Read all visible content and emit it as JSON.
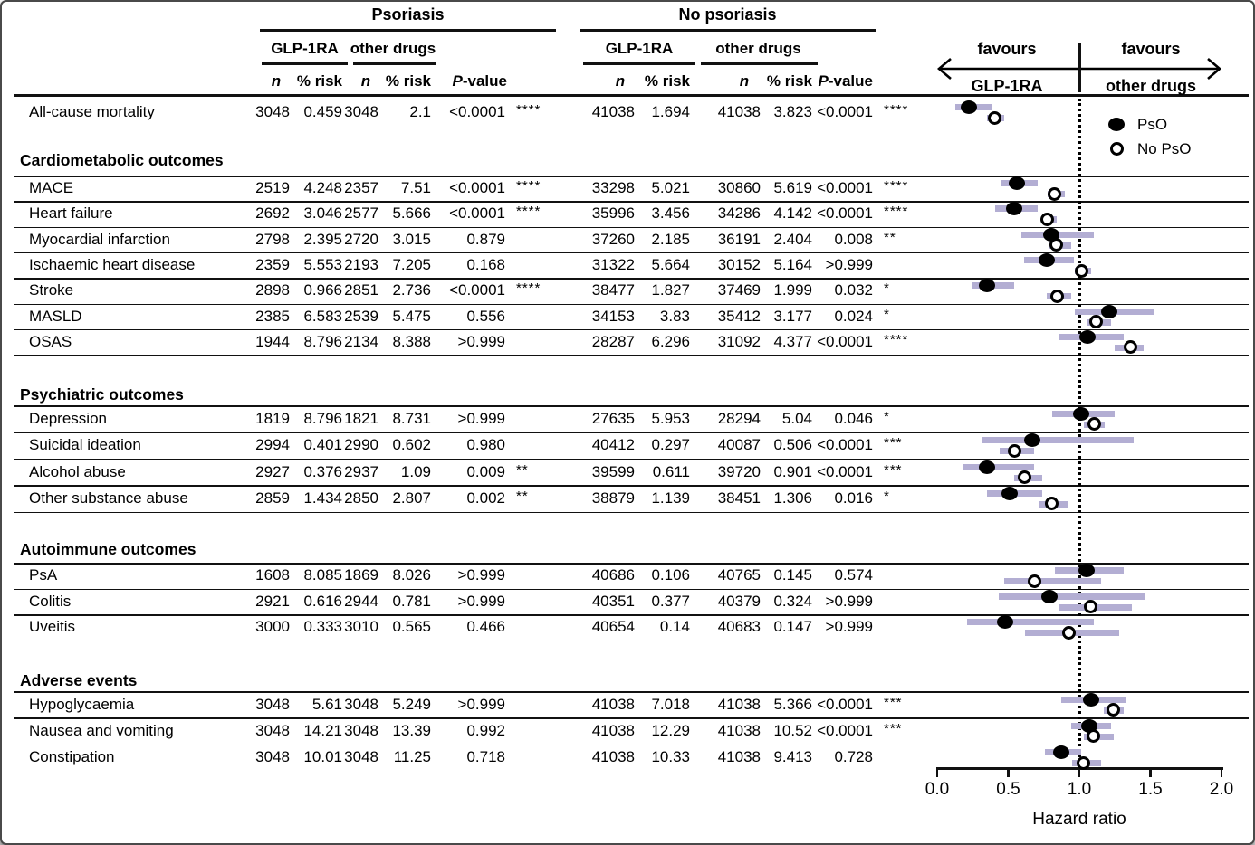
{
  "chart_data": {
    "type": "forest",
    "groups": {
      "g1": "Psoriasis",
      "g2": "No psoriasis"
    },
    "subgroups": {
      "s1": "GLP-1RA",
      "s2": "other drugs"
    },
    "columns": {
      "n": "n",
      "risk": "% risk",
      "p_italic": "P",
      "p_rest": "-value"
    },
    "favours": {
      "left_line1": "favours",
      "left_line2": "GLP-1RA",
      "right_line1": "favours",
      "right_line2": "other drugs"
    },
    "legend": {
      "filled_label": "PsO",
      "open_label": "No PsO"
    },
    "x_axis": {
      "label": "Hazard ratio",
      "min": 0,
      "max": 2,
      "tick_labels": [
        "0.0",
        "0.5",
        "1.0",
        "1.5",
        "2.0"
      ],
      "tick_values": [
        0,
        0.5,
        1,
        1.5,
        2
      ],
      "reference_line": 1.0
    },
    "colors": {
      "ci_bar": "#b3aed3",
      "marker": "#000000",
      "line": "#111111"
    },
    "sections": [
      {
        "title": "",
        "rows": [
          {
            "label": "All-cause mortality",
            "p": {
              "n1": "3048",
              "r1": "0.459",
              "n2": "3048",
              "r2": "2.1",
              "pv": "<0.0001",
              "sig": "****"
            },
            "np": {
              "n1": "41038",
              "r1": "1.694",
              "n2": "41038",
              "r2": "3.823",
              "pv": "<0.0001",
              "sig": "****"
            },
            "pso_hr": {
              "est": 0.22,
              "lo": 0.13,
              "hi": 0.39
            },
            "nopso_hr": {
              "est": 0.41,
              "lo": 0.35,
              "hi": 0.47
            }
          }
        ]
      },
      {
        "title": "Cardiometabolic outcomes",
        "rows": [
          {
            "label": "MACE",
            "p": {
              "n1": "2519",
              "r1": "4.248",
              "n2": "2357",
              "r2": "7.51",
              "pv": "<0.0001",
              "sig": "****"
            },
            "np": {
              "n1": "33298",
              "r1": "5.021",
              "n2": "30860",
              "r2": "5.619",
              "pv": "<0.0001",
              "sig": "****"
            },
            "pso_hr": {
              "est": 0.56,
              "lo": 0.45,
              "hi": 0.71
            },
            "nopso_hr": {
              "est": 0.83,
              "lo": 0.78,
              "hi": 0.9
            }
          },
          {
            "label": "Heart failure",
            "p": {
              "n1": "2692",
              "r1": "3.046",
              "n2": "2577",
              "r2": "5.666",
              "pv": "<0.0001",
              "sig": "****"
            },
            "np": {
              "n1": "35996",
              "r1": "3.456",
              "n2": "34286",
              "r2": "4.142",
              "pv": "<0.0001",
              "sig": "****"
            },
            "pso_hr": {
              "est": 0.54,
              "lo": 0.41,
              "hi": 0.71
            },
            "nopso_hr": {
              "est": 0.78,
              "lo": 0.73,
              "hi": 0.84
            }
          },
          {
            "label": "Myocardial infarction",
            "p": {
              "n1": "2798",
              "r1": "2.395",
              "n2": "2720",
              "r2": "3.015",
              "pv": "0.879",
              "sig": ""
            },
            "np": {
              "n1": "37260",
              "r1": "2.185",
              "n2": "36191",
              "r2": "2.404",
              "pv": "0.008",
              "sig": "**"
            },
            "pso_hr": {
              "est": 0.8,
              "lo": 0.59,
              "hi": 1.1
            },
            "nopso_hr": {
              "est": 0.84,
              "lo": 0.79,
              "hi": 0.94
            }
          },
          {
            "label": "Ischaemic heart disease",
            "p": {
              "n1": "2359",
              "r1": "5.553",
              "n2": "2193",
              "r2": "7.205",
              "pv": "0.168",
              "sig": ""
            },
            "np": {
              "n1": "31322",
              "r1": "5.664",
              "n2": "30152",
              "r2": "5.164",
              "pv": ">0.999",
              "sig": ""
            },
            "pso_hr": {
              "est": 0.77,
              "lo": 0.61,
              "hi": 0.96
            },
            "nopso_hr": {
              "est": 1.02,
              "lo": 0.97,
              "hi": 1.08
            }
          },
          {
            "label": "Stroke",
            "p": {
              "n1": "2898",
              "r1": "0.966",
              "n2": "2851",
              "r2": "2.736",
              "pv": "<0.0001",
              "sig": "****"
            },
            "np": {
              "n1": "38477",
              "r1": "1.827",
              "n2": "37469",
              "r2": "1.999",
              "pv": "0.032",
              "sig": "*"
            },
            "pso_hr": {
              "est": 0.35,
              "lo": 0.24,
              "hi": 0.54
            },
            "nopso_hr": {
              "est": 0.85,
              "lo": 0.77,
              "hi": 0.94
            }
          },
          {
            "label": "MASLD",
            "p": {
              "n1": "2385",
              "r1": "6.583",
              "n2": "2539",
              "r2": "5.475",
              "pv": "0.556",
              "sig": ""
            },
            "np": {
              "n1": "34153",
              "r1": "3.83",
              "n2": "35412",
              "r2": "3.177",
              "pv": "0.024",
              "sig": "*"
            },
            "pso_hr": {
              "est": 1.21,
              "lo": 0.97,
              "hi": 1.53
            },
            "nopso_hr": {
              "est": 1.12,
              "lo": 1.05,
              "hi": 1.22
            }
          },
          {
            "label": "OSAS",
            "p": {
              "n1": "1944",
              "r1": "8.796",
              "n2": "2134",
              "r2": "8.388",
              "pv": ">0.999",
              "sig": ""
            },
            "np": {
              "n1": "28287",
              "r1": "6.296",
              "n2": "31092",
              "r2": "4.377",
              "pv": "<0.0001",
              "sig": "****"
            },
            "pso_hr": {
              "est": 1.06,
              "lo": 0.86,
              "hi": 1.31
            },
            "nopso_hr": {
              "est": 1.36,
              "lo": 1.25,
              "hi": 1.45
            }
          }
        ]
      },
      {
        "title": "Psychiatric outcomes",
        "rows": [
          {
            "label": "Depression",
            "p": {
              "n1": "1819",
              "r1": "8.796",
              "n2": "1821",
              "r2": "8.731",
              "pv": ">0.999",
              "sig": ""
            },
            "np": {
              "n1": "27635",
              "r1": "5.953",
              "n2": "28294",
              "r2": "5.04",
              "pv": "0.046",
              "sig": "*"
            },
            "pso_hr": {
              "est": 1.01,
              "lo": 0.81,
              "hi": 1.25
            },
            "nopso_hr": {
              "est": 1.11,
              "lo": 1.03,
              "hi": 1.18
            }
          },
          {
            "label": "Suicidal ideation",
            "p": {
              "n1": "2994",
              "r1": "0.401",
              "n2": "2990",
              "r2": "0.602",
              "pv": "0.980",
              "sig": ""
            },
            "np": {
              "n1": "40412",
              "r1": "0.297",
              "n2": "40087",
              "r2": "0.506",
              "pv": "<0.0001",
              "sig": "***"
            },
            "pso_hr": {
              "est": 0.67,
              "lo": 0.32,
              "hi": 1.38
            },
            "nopso_hr": {
              "est": 0.55,
              "lo": 0.44,
              "hi": 0.68
            }
          },
          {
            "label": "Alcohol abuse",
            "p": {
              "n1": "2927",
              "r1": "0.376",
              "n2": "2937",
              "r2": "1.09",
              "pv": "0.009",
              "sig": "**"
            },
            "np": {
              "n1": "39599",
              "r1": "0.611",
              "n2": "39720",
              "r2": "0.901",
              "pv": "<0.0001",
              "sig": "***"
            },
            "pso_hr": {
              "est": 0.35,
              "lo": 0.18,
              "hi": 0.68
            },
            "nopso_hr": {
              "est": 0.62,
              "lo": 0.54,
              "hi": 0.74
            }
          },
          {
            "label": "Other substance abuse",
            "p": {
              "n1": "2859",
              "r1": "1.434",
              "n2": "2850",
              "r2": "2.807",
              "pv": "0.002",
              "sig": "**"
            },
            "np": {
              "n1": "38879",
              "r1": "1.139",
              "n2": "38451",
              "r2": "1.306",
              "pv": "0.016",
              "sig": "*"
            },
            "pso_hr": {
              "est": 0.51,
              "lo": 0.35,
              "hi": 0.74
            },
            "nopso_hr": {
              "est": 0.81,
              "lo": 0.72,
              "hi": 0.92
            }
          }
        ]
      },
      {
        "title": "Autoimmune outcomes",
        "rows": [
          {
            "label": "PsA",
            "p": {
              "n1": "1608",
              "r1": "8.085",
              "n2": "1869",
              "r2": "8.026",
              "pv": ">0.999",
              "sig": ""
            },
            "np": {
              "n1": "40686",
              "r1": "0.106",
              "n2": "40765",
              "r2": "0.145",
              "pv": "0.574",
              "sig": ""
            },
            "pso_hr": {
              "est": 1.05,
              "lo": 0.83,
              "hi": 1.31
            },
            "nopso_hr": {
              "est": 0.69,
              "lo": 0.47,
              "hi": 1.15
            }
          },
          {
            "label": "Colitis",
            "p": {
              "n1": "2921",
              "r1": "0.616",
              "n2": "2944",
              "r2": "0.781",
              "pv": ">0.999",
              "sig": ""
            },
            "np": {
              "n1": "40351",
              "r1": "0.377",
              "n2": "40379",
              "r2": "0.324",
              "pv": ">0.999",
              "sig": ""
            },
            "pso_hr": {
              "est": 0.79,
              "lo": 0.43,
              "hi": 1.46
            },
            "nopso_hr": {
              "est": 1.08,
              "lo": 0.86,
              "hi": 1.37
            }
          },
          {
            "label": "Uveitis",
            "p": {
              "n1": "3000",
              "r1": "0.333",
              "n2": "3010",
              "r2": "0.565",
              "pv": "0.466",
              "sig": ""
            },
            "np": {
              "n1": "40654",
              "r1": "0.14",
              "n2": "40683",
              "r2": "0.147",
              "pv": ">0.999",
              "sig": ""
            },
            "pso_hr": {
              "est": 0.48,
              "lo": 0.21,
              "hi": 1.1
            },
            "nopso_hr": {
              "est": 0.93,
              "lo": 0.62,
              "hi": 1.28
            }
          }
        ]
      },
      {
        "title": "Adverse events",
        "rows": [
          {
            "label": "Hypoglycaemia",
            "p": {
              "n1": "3048",
              "r1": "5.61",
              "n2": "3048",
              "r2": "5.249",
              "pv": ">0.999",
              "sig": ""
            },
            "np": {
              "n1": "41038",
              "r1": "7.018",
              "n2": "41038",
              "r2": "5.366",
              "pv": "<0.0001",
              "sig": "***"
            },
            "pso_hr": {
              "est": 1.08,
              "lo": 0.87,
              "hi": 1.33
            },
            "nopso_hr": {
              "est": 1.24,
              "lo": 1.17,
              "hi": 1.31
            }
          },
          {
            "label": "Nausea and vomiting",
            "p": {
              "n1": "3048",
              "r1": "14.21",
              "n2": "3048",
              "r2": "13.39",
              "pv": "0.992",
              "sig": ""
            },
            "np": {
              "n1": "41038",
              "r1": "12.29",
              "n2": "41038",
              "r2": "10.52",
              "pv": "<0.0001",
              "sig": "***"
            },
            "pso_hr": {
              "est": 1.07,
              "lo": 0.94,
              "hi": 1.22
            },
            "nopso_hr": {
              "est": 1.1,
              "lo": 1.03,
              "hi": 1.24
            }
          },
          {
            "label": "Constipation",
            "p": {
              "n1": "3048",
              "r1": "10.01",
              "n2": "3048",
              "r2": "11.25",
              "pv": "0.718",
              "sig": ""
            },
            "np": {
              "n1": "41038",
              "r1": "10.33",
              "n2": "41038",
              "r2": "9.413",
              "pv": "0.728",
              "sig": ""
            },
            "pso_hr": {
              "est": 0.87,
              "lo": 0.76,
              "hi": 1.01
            },
            "nopso_hr": {
              "est": 1.03,
              "lo": 0.95,
              "hi": 1.15
            }
          }
        ]
      }
    ]
  }
}
